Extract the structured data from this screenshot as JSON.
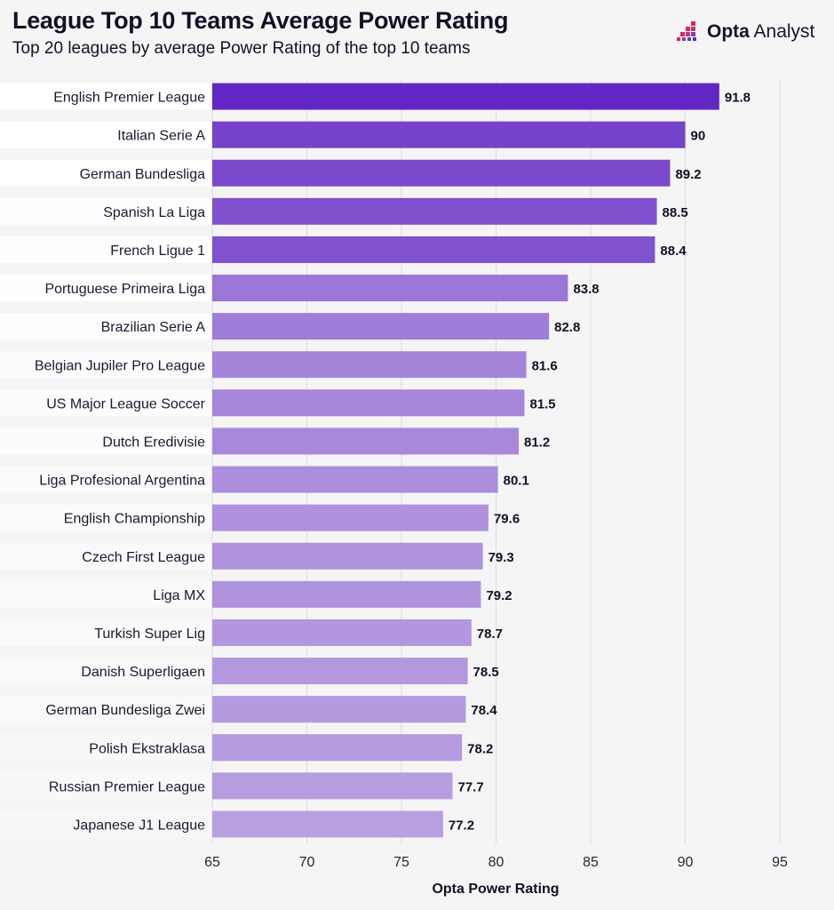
{
  "header": {
    "title": "League Top 10 Teams Average Power Rating",
    "subtitle": "Top 20 leagues by average Power Rating of the top 10 teams",
    "logo_text_bold": "Opta",
    "logo_text": "Analyst"
  },
  "colors": {
    "bar_top": "#6126c4",
    "bar_bottom": "#b8a0e0",
    "text": "#150f25",
    "logo_accent": "#e0245e"
  },
  "chart_data": {
    "type": "bar",
    "orientation": "horizontal",
    "title": "League Top 10 Teams Average Power Rating",
    "subtitle": "Top 20 leagues by average Power Rating of the top 10 teams",
    "xlabel": "Opta Power Rating",
    "ylabel": "",
    "xlim": [
      65,
      95
    ],
    "xticks": [
      65,
      70,
      75,
      80,
      85,
      90,
      95
    ],
    "grid": true,
    "categories": [
      "English Premier League",
      "Italian Serie A",
      "German Bundesliga",
      "Spanish La Liga",
      "French Ligue 1",
      "Portuguese Primeira Liga",
      "Brazilian Serie A",
      "Belgian Jupiler Pro League",
      "US Major League Soccer",
      "Dutch Eredivisie",
      "Liga Profesional Argentina",
      "English Championship",
      "Czech First League",
      "Liga MX",
      "Turkish Super Lig",
      "Danish Superligaen",
      "German Bundesliga Zwei",
      "Polish Ekstraklasa",
      "Russian Premier League",
      "Japanese J1 League"
    ],
    "values": [
      91.8,
      90,
      89.2,
      88.5,
      88.4,
      83.8,
      82.8,
      81.6,
      81.5,
      81.2,
      80.1,
      79.6,
      79.3,
      79.2,
      78.7,
      78.5,
      78.4,
      78.2,
      77.7,
      77.2
    ]
  }
}
